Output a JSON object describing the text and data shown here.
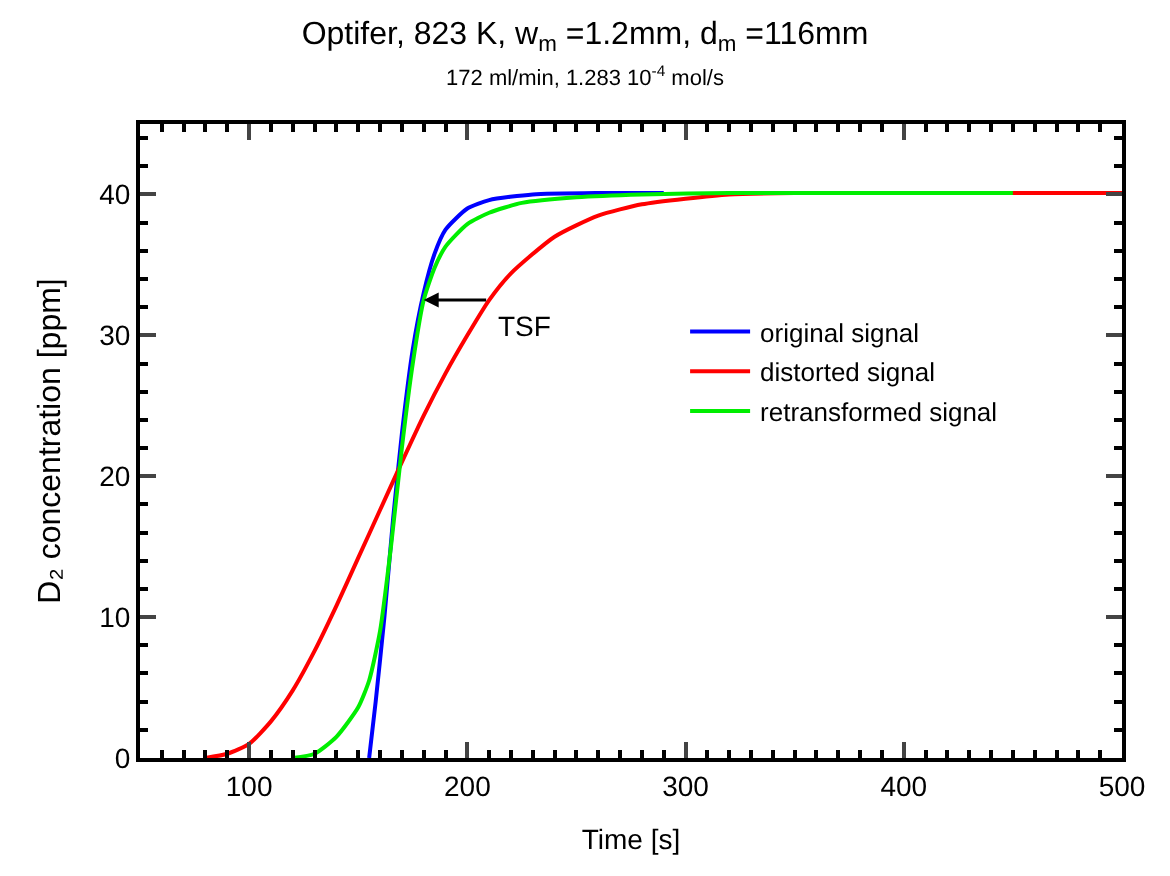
{
  "chart_data": {
    "type": "line",
    "title": "Optifer, 823 K, w$_{m}$ =1.2mm, d$_{m}$ =116mm",
    "subtitle": "172 ml/min, 1.283 10$^{-4}$ mol/s",
    "xlabel": "Time [s]",
    "ylabel": "D₂ concentration [ppm]",
    "series": [
      {
        "name": "original signal",
        "color": "#0000ff",
        "x": [
          155,
          158,
          162,
          166,
          170,
          175,
          180,
          185,
          190,
          200,
          210,
          230,
          260,
          290
        ],
        "values": [
          0,
          4,
          10,
          17,
          23,
          29,
          33,
          35.8,
          37.5,
          39,
          39.6,
          40,
          40.1,
          40.1
        ]
      },
      {
        "name": "distorted signal",
        "color": "#ff0000",
        "x": [
          80,
          90,
          100,
          110,
          120,
          130,
          140,
          150,
          160,
          170,
          180,
          190,
          200,
          210,
          220,
          240,
          260,
          280,
          300,
          320,
          350,
          400,
          450,
          500
        ],
        "values": [
          0,
          0.3,
          1,
          2.6,
          4.8,
          7.6,
          10.8,
          14.2,
          17.6,
          21,
          24.3,
          27.3,
          30,
          32.5,
          34.4,
          37,
          38.5,
          39.3,
          39.7,
          40,
          40.1,
          40.1,
          40.1,
          40.1
        ]
      },
      {
        "name": "retransformed signal",
        "color": "#00ee00",
        "x": [
          120,
          130,
          140,
          150,
          155,
          160,
          165,
          170,
          175,
          180,
          185,
          190,
          200,
          210,
          225,
          250,
          280,
          320,
          400,
          450
        ],
        "values": [
          0,
          0.3,
          1.5,
          3.6,
          5.5,
          9,
          15,
          22,
          28,
          32.5,
          34.8,
          36.3,
          37.9,
          38.7,
          39.4,
          39.8,
          40,
          40.1,
          40.1,
          40.1
        ]
      }
    ],
    "xlim": [
      50,
      500
    ],
    "ylim": [
      0,
      45
    ],
    "xticks": [
      {
        "value": 50,
        "label": null
      },
      {
        "value": 60,
        "label": null
      },
      {
        "value": 70,
        "label": null
      },
      {
        "value": 80,
        "label": null
      },
      {
        "value": 90,
        "label": null
      },
      100,
      {
        "value": 110,
        "label": null
      },
      {
        "value": 120,
        "label": null
      },
      {
        "value": 130,
        "label": null
      },
      {
        "value": 140,
        "label": null
      },
      {
        "value": 150,
        "label": null
      },
      {
        "value": 160,
        "label": null
      },
      {
        "value": 170,
        "label": null
      },
      {
        "value": 180,
        "label": null
      },
      {
        "value": 190,
        "label": null
      },
      200,
      {
        "value": 210,
        "label": null
      },
      {
        "value": 220,
        "label": null
      },
      {
        "value": 230,
        "label": null
      },
      {
        "value": 240,
        "label": null
      },
      {
        "value": 250,
        "label": null
      },
      {
        "value": 260,
        "label": null
      },
      {
        "value": 270,
        "label": null
      },
      {
        "value": 280,
        "label": null
      },
      {
        "value": 290,
        "label": null
      },
      300,
      {
        "value": 310,
        "label": null
      },
      {
        "value": 320,
        "label": null
      },
      {
        "value": 330,
        "label": null
      },
      {
        "value": 340,
        "label": null
      },
      {
        "value": 350,
        "label": null
      },
      {
        "value": 360,
        "label": null
      },
      {
        "value": 370,
        "label": null
      },
      {
        "value": 380,
        "label": null
      },
      {
        "value": 390,
        "label": null
      },
      400,
      {
        "value": 410,
        "label": null
      },
      {
        "value": 420,
        "label": null
      },
      {
        "value": 430,
        "label": null
      },
      {
        "value": 440,
        "label": null
      },
      {
        "value": 450,
        "label": null
      },
      {
        "value": 460,
        "label": null
      },
      {
        "value": 470,
        "label": null
      },
      {
        "value": 480,
        "label": null
      },
      {
        "value": 490,
        "label": null
      },
      500
    ],
    "yticks": [
      0,
      {
        "value": 2,
        "label": null
      },
      {
        "value": 4,
        "label": null
      },
      {
        "value": 6,
        "label": null
      },
      {
        "value": 8,
        "label": null
      },
      10,
      {
        "value": 12,
        "label": null
      },
      {
        "value": 14,
        "label": null
      },
      {
        "value": 16,
        "label": null
      },
      {
        "value": 18,
        "label": null
      },
      20,
      {
        "value": 22,
        "label": null
      },
      {
        "value": 24,
        "label": null
      },
      {
        "value": 26,
        "label": null
      },
      {
        "value": 28,
        "label": null
      },
      30,
      {
        "value": 32,
        "label": null
      },
      {
        "value": 34,
        "label": null
      },
      {
        "value": 36,
        "label": null
      },
      {
        "value": 38,
        "label": null
      },
      40,
      {
        "value": 42,
        "label": null
      },
      {
        "value": 44,
        "label": null
      }
    ],
    "annotations": [
      {
        "text": "TSF",
        "x": 180,
        "y": 32.5
      }
    ],
    "legend": "right",
    "marker": "none",
    "line_style": "solid"
  }
}
